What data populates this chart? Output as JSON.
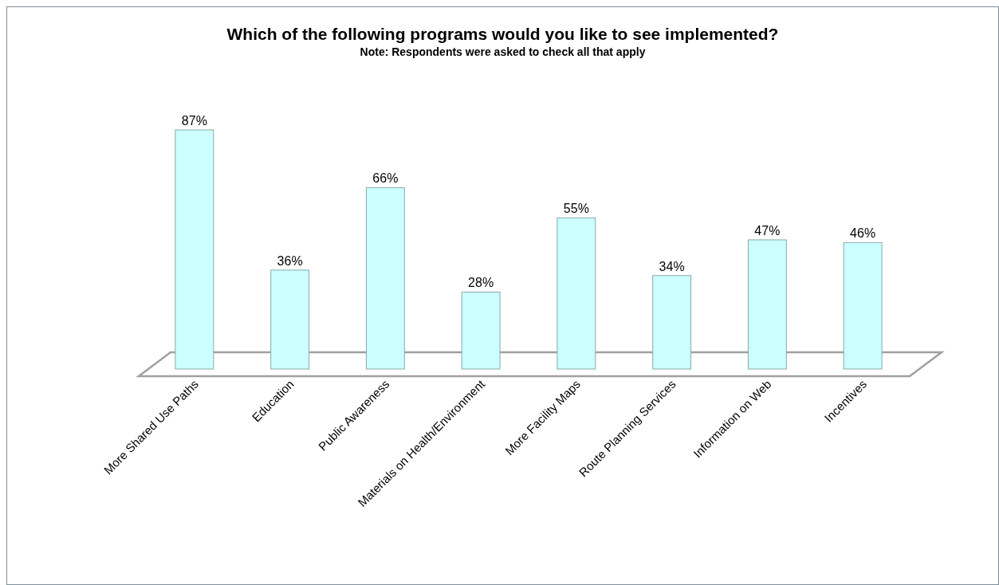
{
  "chart_data": {
    "type": "bar",
    "title": "Which of the following programs would you like to see implemented?",
    "subtitle": "Note: Respondents were asked to check all that apply",
    "categories": [
      "More Shared Use Paths",
      "Education",
      "Public Awareness",
      "Materials on Health/Environment",
      "More Facility Maps",
      "Route Planning Services",
      "Information on Web",
      "Incentives"
    ],
    "values": [
      87,
      36,
      66,
      28,
      55,
      34,
      47,
      46
    ],
    "value_labels": [
      "87%",
      "36%",
      "66%",
      "28%",
      "55%",
      "34%",
      "47%",
      "46%"
    ],
    "color": "#ccffff",
    "tick_labels": "x"
  }
}
